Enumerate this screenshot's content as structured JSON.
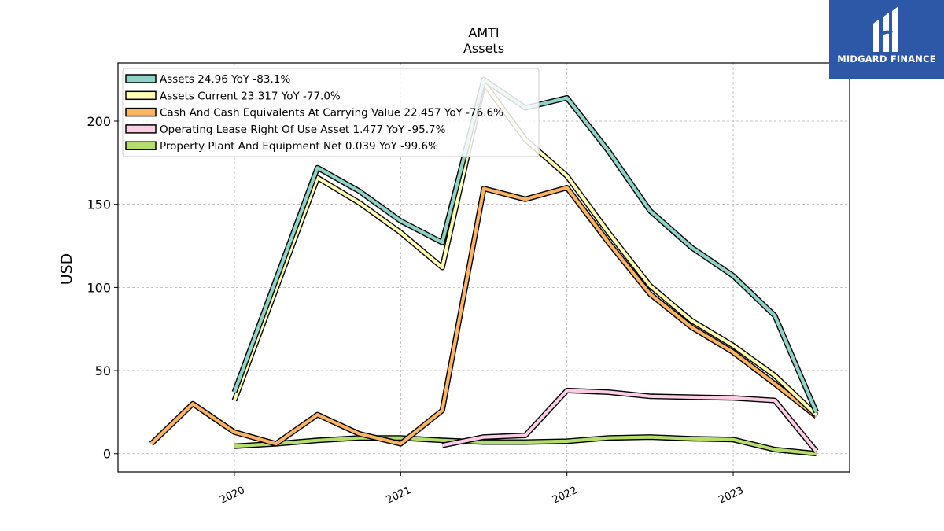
{
  "logo": {
    "text": "MIDGARD FINANCE"
  },
  "chart_data": {
    "type": "line",
    "title": "AMTI",
    "subtitle": "Assets",
    "ylabel": "USD",
    "xlabel": "",
    "ylim": [
      -11,
      235
    ],
    "xlim": [
      2019.3,
      2023.7
    ],
    "yticks": [
      0,
      50,
      100,
      150,
      200
    ],
    "xticks": [
      {
        "value": 2020,
        "label": "2020"
      },
      {
        "value": 2021,
        "label": "2021"
      },
      {
        "value": 2022,
        "label": "2022"
      },
      {
        "value": 2023,
        "label": "2023"
      }
    ],
    "grid": true,
    "legend_position": "top-left",
    "series": [
      {
        "name": "Property Plant And Equipment Net",
        "legend": "Property Plant And Equipment Net  0.039 YoY -99.6%",
        "color": "#b3de69",
        "x": [
          2020.0,
          2020.25,
          2020.5,
          2020.75,
          2021.0,
          2021.25,
          2021.5,
          2021.75,
          2022.0,
          2022.25,
          2022.5,
          2022.75,
          2023.0,
          2023.25,
          2023.5
        ],
        "y": [
          4.5,
          6.0,
          8.0,
          9.5,
          9.5,
          8.0,
          7.0,
          7.0,
          7.5,
          9.5,
          10.0,
          9.0,
          8.5,
          2.5,
          0.039
        ]
      },
      {
        "name": "Operating Lease Right Of Use Asset",
        "legend": "Operating Lease Right Of Use Asset  1.477 YoY -95.7%",
        "color": "#fccde5",
        "x": [
          2021.25,
          2021.5,
          2021.75,
          2022.0,
          2022.25,
          2022.5,
          2022.75,
          2023.0,
          2023.25,
          2023.5
        ],
        "y": [
          5.0,
          10.0,
          11.0,
          38.0,
          37.0,
          34.5,
          34.0,
          33.5,
          32.0,
          1.477
        ]
      },
      {
        "name": "Cash And Cash Equivalents At Carrying Value",
        "legend": "Cash And Cash Equivalents At Carrying Value  22.457 YoY -76.6%",
        "color": "#fdb462",
        "x": [
          2019.5,
          2019.75,
          2020.0,
          2020.25,
          2020.5,
          2020.75,
          2021.0,
          2021.25,
          2021.5,
          2021.75,
          2022.0,
          2022.25,
          2022.5,
          2022.75,
          2023.0,
          2023.25,
          2023.5
        ],
        "y": [
          6.0,
          30.0,
          13.0,
          6.0,
          23.5,
          12.0,
          6.0,
          26.0,
          159.5,
          153.0,
          160.0,
          127.0,
          96.0,
          76.0,
          61.0,
          42.0,
          22.457
        ]
      },
      {
        "name": "Assets Current",
        "legend": "Assets Current  23.317 YoY -77.0%",
        "color": "#ffffb3",
        "x": [
          2020.0,
          2020.5,
          2020.75,
          2021.0,
          2021.25,
          2021.5,
          2021.75,
          2022.0,
          2022.25,
          2022.5,
          2022.75,
          2023.0,
          2023.25,
          2023.5
        ],
        "y": [
          32.0,
          166.0,
          151.0,
          133.0,
          112.0,
          223.0,
          189.0,
          167.0,
          133.0,
          101.0,
          80.0,
          65.0,
          47.0,
          23.317
        ]
      },
      {
        "name": "Assets",
        "legend": "Assets  24.96 YoY -83.1%",
        "color": "#8dd3c7",
        "x": [
          2020.0,
          2020.5,
          2020.75,
          2021.0,
          2021.25,
          2021.5,
          2021.75,
          2022.0,
          2022.25,
          2022.5,
          2022.75,
          2023.0,
          2023.25,
          2023.5
        ],
        "y": [
          37.0,
          172.0,
          158.0,
          140.0,
          127.0,
          225.0,
          208.0,
          214.0,
          182.0,
          146.0,
          124.0,
          107.0,
          83.0,
          24.96
        ]
      }
    ],
    "legend_order": [
      "Assets",
      "Assets Current",
      "Cash And Cash Equivalents At Carrying Value",
      "Operating Lease Right Of Use Asset",
      "Property Plant And Equipment Net"
    ]
  }
}
